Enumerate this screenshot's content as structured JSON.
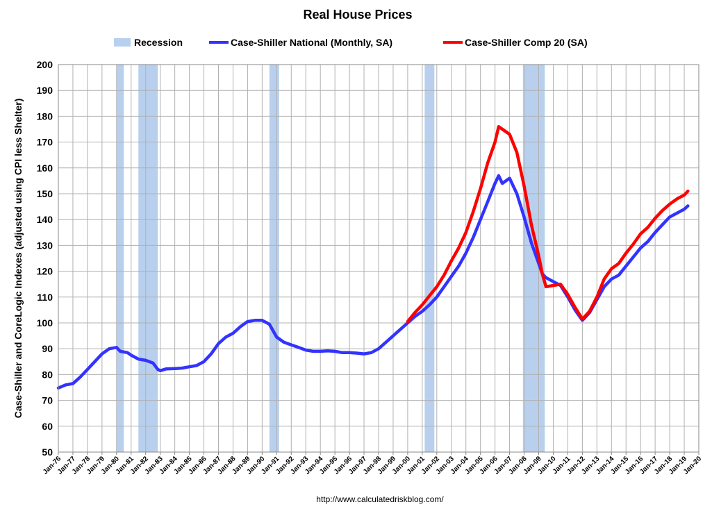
{
  "chart_data": {
    "type": "line",
    "title": "Real House Prices",
    "ylabel": "Case-Shiller and CoreLogic Indexes (adjusted using CPI less Shelter)",
    "source": "http://www.calculatedriskblog.com/",
    "ylim": [
      50,
      200
    ],
    "yticks": [
      50,
      60,
      70,
      80,
      90,
      100,
      110,
      120,
      130,
      140,
      150,
      160,
      170,
      180,
      190,
      200
    ],
    "x_tick_labels": [
      "Jan-76",
      "Jan-77",
      "Jan-78",
      "Jan-79",
      "Jan-80",
      "Jan-81",
      "Jan-82",
      "Jan-83",
      "Jan-84",
      "Jan-85",
      "Jan-86",
      "Jan-87",
      "Jan-88",
      "Jan-89",
      "Jan-90",
      "Jan-91",
      "Jan-92",
      "Jan-93",
      "Jan-94",
      "Jan-95",
      "Jan-96",
      "Jan-97",
      "Jan-98",
      "Jan-99",
      "Jan-00",
      "Jan-01",
      "Jan-02",
      "Jan-03",
      "Jan-04",
      "Jan-05",
      "Jan-06",
      "Jan-07",
      "Jan-08",
      "Jan-09",
      "Jan-10",
      "Jan-11",
      "Jan-12",
      "Jan-13",
      "Jan-14",
      "Jan-15",
      "Jan-16",
      "Jan-17",
      "Jan-18",
      "Jan-19",
      "Jan-20"
    ],
    "xlim": [
      "1976-01",
      "2020-01"
    ],
    "grid": true,
    "legend_position": "top",
    "recessions": [
      {
        "start": "1980-01",
        "end": "1980-07"
      },
      {
        "start": "1981-07",
        "end": "1982-11"
      },
      {
        "start": "1990-07",
        "end": "1991-03"
      },
      {
        "start": "2001-03",
        "end": "2001-11"
      },
      {
        "start": "2007-12",
        "end": "2009-06"
      }
    ],
    "series": [
      {
        "name": "Case-Shiller National (Monthly, SA)",
        "color": "#3333ff",
        "points": [
          [
            "1976-01",
            74.8
          ],
          [
            "1976-07",
            76
          ],
          [
            "1977-01",
            76.5
          ],
          [
            "1977-07",
            79
          ],
          [
            "1978-01",
            82
          ],
          [
            "1978-07",
            85
          ],
          [
            "1979-01",
            88
          ],
          [
            "1979-07",
            90
          ],
          [
            "1980-01",
            90.5
          ],
          [
            "1980-04",
            89
          ],
          [
            "1980-10",
            88.5
          ],
          [
            "1981-01",
            87.5
          ],
          [
            "1981-07",
            86
          ],
          [
            "1982-01",
            85.5
          ],
          [
            "1982-07",
            84.5
          ],
          [
            "1982-11",
            82
          ],
          [
            "1983-01",
            81.5
          ],
          [
            "1983-06",
            82.2
          ],
          [
            "1984-01",
            82.3
          ],
          [
            "1984-07",
            82.5
          ],
          [
            "1985-01",
            83
          ],
          [
            "1985-07",
            83.5
          ],
          [
            "1986-01",
            85
          ],
          [
            "1986-07",
            88
          ],
          [
            "1987-01",
            92
          ],
          [
            "1987-07",
            94.5
          ],
          [
            "1988-01",
            96
          ],
          [
            "1988-07",
            98.5
          ],
          [
            "1989-01",
            100.5
          ],
          [
            "1989-07",
            101
          ],
          [
            "1990-01",
            101
          ],
          [
            "1990-07",
            99.5
          ],
          [
            "1991-01",
            94.5
          ],
          [
            "1991-07",
            92.5
          ],
          [
            "1992-01",
            91.5
          ],
          [
            "1992-07",
            90.5
          ],
          [
            "1993-01",
            89.5
          ],
          [
            "1993-07",
            89
          ],
          [
            "1994-01",
            89
          ],
          [
            "1994-07",
            89.2
          ],
          [
            "1995-01",
            89
          ],
          [
            "1995-07",
            88.5
          ],
          [
            "1996-01",
            88.5
          ],
          [
            "1996-07",
            88.3
          ],
          [
            "1997-01",
            88
          ],
          [
            "1997-07",
            88.5
          ],
          [
            "1998-01",
            90
          ],
          [
            "1998-07",
            92.5
          ],
          [
            "1999-01",
            95
          ],
          [
            "1999-07",
            97.5
          ],
          [
            "2000-01",
            100
          ],
          [
            "2000-07",
            102.5
          ],
          [
            "2001-01",
            104.5
          ],
          [
            "2001-07",
            107
          ],
          [
            "2002-01",
            110
          ],
          [
            "2002-07",
            114
          ],
          [
            "2003-01",
            118
          ],
          [
            "2003-07",
            122
          ],
          [
            "2004-01",
            127
          ],
          [
            "2004-07",
            133
          ],
          [
            "2005-01",
            140
          ],
          [
            "2005-07",
            147
          ],
          [
            "2006-01",
            154
          ],
          [
            "2006-04",
            157
          ],
          [
            "2006-07",
            154
          ],
          [
            "2007-01",
            156
          ],
          [
            "2007-07",
            150
          ],
          [
            "2008-01",
            141
          ],
          [
            "2008-07",
            131
          ],
          [
            "2009-01",
            123
          ],
          [
            "2009-04",
            119
          ],
          [
            "2009-07",
            117.5
          ],
          [
            "2010-01",
            116
          ],
          [
            "2010-07",
            114.5
          ],
          [
            "2011-01",
            110
          ],
          [
            "2011-07",
            105
          ],
          [
            "2012-01",
            101
          ],
          [
            "2012-07",
            104
          ],
          [
            "2013-01",
            109
          ],
          [
            "2013-07",
            114
          ],
          [
            "2014-01",
            117
          ],
          [
            "2014-07",
            118.5
          ],
          [
            "2015-01",
            122
          ],
          [
            "2015-07",
            125.5
          ],
          [
            "2016-01",
            129
          ],
          [
            "2016-07",
            131.5
          ],
          [
            "2017-01",
            135
          ],
          [
            "2017-07",
            138
          ],
          [
            "2018-01",
            141
          ],
          [
            "2018-07",
            142.5
          ],
          [
            "2019-01",
            144
          ],
          [
            "2019-04",
            145.3
          ]
        ]
      },
      {
        "name": "Case-Shiller Comp 20  (SA)",
        "color": "#ff0000",
        "points": [
          [
            "2000-01",
            100.5
          ],
          [
            "2000-07",
            104
          ],
          [
            "2001-01",
            107
          ],
          [
            "2001-07",
            110.5
          ],
          [
            "2002-01",
            114
          ],
          [
            "2002-07",
            118.5
          ],
          [
            "2003-01",
            124
          ],
          [
            "2003-07",
            129
          ],
          [
            "2004-01",
            135
          ],
          [
            "2004-07",
            143
          ],
          [
            "2005-01",
            152
          ],
          [
            "2005-07",
            162
          ],
          [
            "2006-01",
            170
          ],
          [
            "2006-04",
            176
          ],
          [
            "2006-07",
            175
          ],
          [
            "2007-01",
            173
          ],
          [
            "2007-07",
            166
          ],
          [
            "2008-01",
            153
          ],
          [
            "2008-07",
            138
          ],
          [
            "2009-01",
            126
          ],
          [
            "2009-04",
            119
          ],
          [
            "2009-07",
            114
          ],
          [
            "2010-01",
            114.5
          ],
          [
            "2010-07",
            115
          ],
          [
            "2011-01",
            111
          ],
          [
            "2011-07",
            106
          ],
          [
            "2012-01",
            101.5
          ],
          [
            "2012-07",
            104.5
          ],
          [
            "2013-01",
            110
          ],
          [
            "2013-07",
            117
          ],
          [
            "2014-01",
            121
          ],
          [
            "2014-07",
            123
          ],
          [
            "2015-01",
            127
          ],
          [
            "2015-07",
            130.5
          ],
          [
            "2016-01",
            134.5
          ],
          [
            "2016-07",
            137
          ],
          [
            "2017-01",
            140.5
          ],
          [
            "2017-07",
            143.5
          ],
          [
            "2018-01",
            146
          ],
          [
            "2018-07",
            148
          ],
          [
            "2019-01",
            149.5
          ],
          [
            "2019-04",
            151
          ]
        ]
      }
    ],
    "legend": [
      {
        "label": "Recession",
        "type": "box",
        "color": "#b8d0ee"
      },
      {
        "label": "Case-Shiller National (Monthly, SA)",
        "type": "line",
        "color": "#3333ff"
      },
      {
        "label": "Case-Shiller Comp 20  (SA)",
        "type": "line",
        "color": "#ff0000"
      }
    ]
  }
}
